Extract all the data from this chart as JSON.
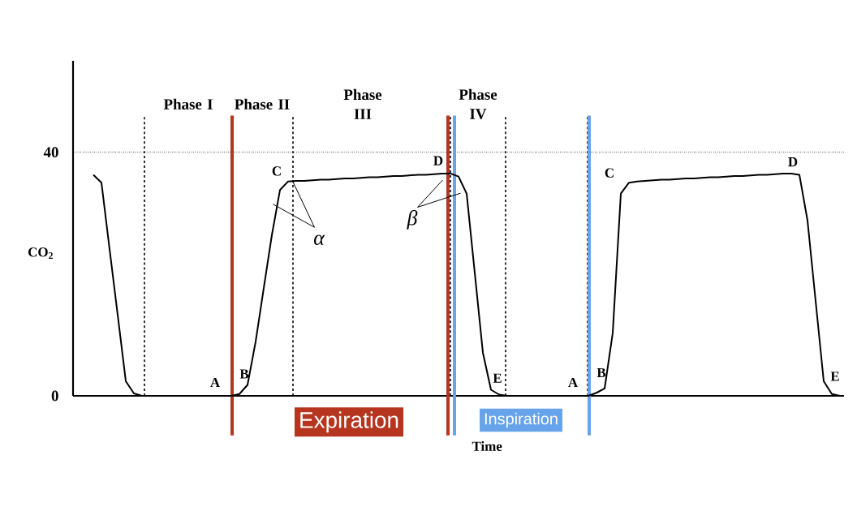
{
  "chart_data": {
    "type": "line",
    "xlabel": "Time",
    "ylabel": "CO$_{2}$",
    "tick_labels": "y",
    "color": "#000000",
    "line_style": "solid",
    "categories": [
      null,
      null,
      null,
      null,
      null,
      null,
      null,
      null,
      null,
      null,
      null,
      null,
      null,
      null,
      null,
      null,
      null,
      null,
      null,
      null,
      null,
      null,
      null,
      null,
      null,
      null,
      null,
      null,
      null,
      null,
      null,
      null,
      null,
      null,
      null,
      null,
      null,
      null,
      null,
      null,
      null,
      null,
      null,
      null,
      null,
      null,
      null,
      null,
      null,
      null,
      null,
      null,
      null,
      null,
      null,
      null,
      null,
      null,
      null,
      null,
      null,
      null,
      null,
      null,
      null,
      null,
      null,
      null,
      null,
      null,
      null,
      null,
      null,
      null,
      null,
      null,
      null,
      null,
      null,
      null,
      null,
      null,
      null,
      null,
      null,
      null,
      null,
      null,
      null,
      null,
      null,
      null,
      null,
      null,
      null
    ],
    "values": [
      null,
      null,
      36.3,
      35,
      24.1,
      13.3,
      2.4,
      0.4,
      0,
      0,
      0,
      0,
      0,
      0,
      0,
      0,
      0,
      0,
      0,
      0,
      0.3,
      1.8,
      8.9,
      17.7,
      26.4,
      33.8,
      35.2,
      35.3,
      35.3,
      35.4,
      35.5,
      35.5,
      35.6,
      35.7,
      35.7,
      35.8,
      35.9,
      35.9,
      36,
      36.1,
      36.1,
      36.2,
      36.3,
      36.3,
      36.4,
      36.5,
      36.5,
      36,
      33.2,
      20.2,
      7.1,
      1,
      0.2,
      0,
      0,
      0,
      0,
      0,
      0,
      0,
      0,
      0,
      0,
      0,
      0.5,
      1.2,
      10.3,
      33.2,
      35,
      35.2,
      35.3,
      35.4,
      35.5,
      35.5,
      35.6,
      35.7,
      35.7,
      35.8,
      35.9,
      35.9,
      36,
      36.1,
      36.1,
      36.2,
      36.3,
      36.3,
      36.4,
      36.5,
      36.5,
      36.3,
      28.8,
      15.6,
      2.4,
      0.3,
      0
    ],
    "ylim": [
      0,
      55
    ],
    "yticks": [
      0,
      40
    ],
    "grid": true,
    "annotations": [
      "Phase I",
      "Phase II",
      "Phase III",
      "Phase IV",
      "A",
      "B",
      "C",
      "α",
      "D",
      "β",
      "E",
      "A",
      "B",
      "C",
      "D",
      "E",
      "Expiration",
      "Inspiration"
    ]
  }
}
